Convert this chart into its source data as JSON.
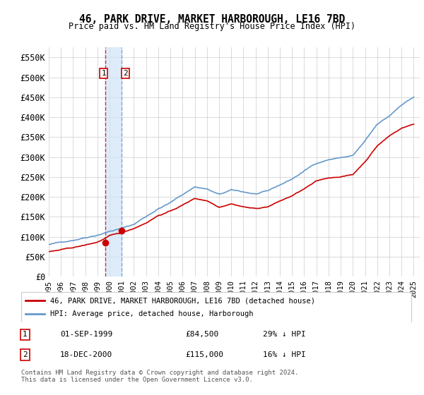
{
  "title": "46, PARK DRIVE, MARKET HARBOROUGH, LE16 7BD",
  "subtitle": "Price paid vs. HM Land Registry's House Price Index (HPI)",
  "ylabel_ticks": [
    "£0",
    "£50K",
    "£100K",
    "£150K",
    "£200K",
    "£250K",
    "£300K",
    "£350K",
    "£400K",
    "£450K",
    "£500K",
    "£550K"
  ],
  "ylim": [
    0,
    575000
  ],
  "ytick_vals": [
    0,
    50000,
    100000,
    150000,
    200000,
    250000,
    300000,
    350000,
    400000,
    450000,
    500000,
    550000
  ],
  "xmin_year": 1995,
  "xmax_year": 2025,
  "xtick_years": [
    1995,
    1996,
    1997,
    1998,
    1999,
    2000,
    2001,
    2002,
    2003,
    2004,
    2005,
    2006,
    2007,
    2008,
    2009,
    2010,
    2011,
    2012,
    2013,
    2014,
    2015,
    2016,
    2017,
    2018,
    2019,
    2020,
    2021,
    2022,
    2023,
    2024,
    2025
  ],
  "hpi_color": "#6699cc",
  "price_color": "#cc0000",
  "marker_color": "#cc0000",
  "transaction1_x": 1999.67,
  "transaction1_y": 84500,
  "transaction1_label": "1",
  "transaction2_x": 2000.96,
  "transaction2_y": 115000,
  "transaction2_label": "2",
  "vline1_x": 1999.67,
  "vline2_x": 2000.96,
  "legend_line1": "46, PARK DRIVE, MARKET HARBOROUGH, LE16 7BD (detached house)",
  "legend_line2": "HPI: Average price, detached house, Harborough",
  "table_row1_num": "1",
  "table_row1_date": "01-SEP-1999",
  "table_row1_price": "£84,500",
  "table_row1_hpi": "29% ↓ HPI",
  "table_row2_num": "2",
  "table_row2_date": "18-DEC-2000",
  "table_row2_price": "£115,000",
  "table_row2_hpi": "16% ↓ HPI",
  "footnote": "Contains HM Land Registry data © Crown copyright and database right 2024.\nThis data is licensed under the Open Government Licence v3.0.",
  "bg_color": "#ffffff",
  "grid_color": "#cccccc",
  "highlight_color": "#d0e4f7"
}
